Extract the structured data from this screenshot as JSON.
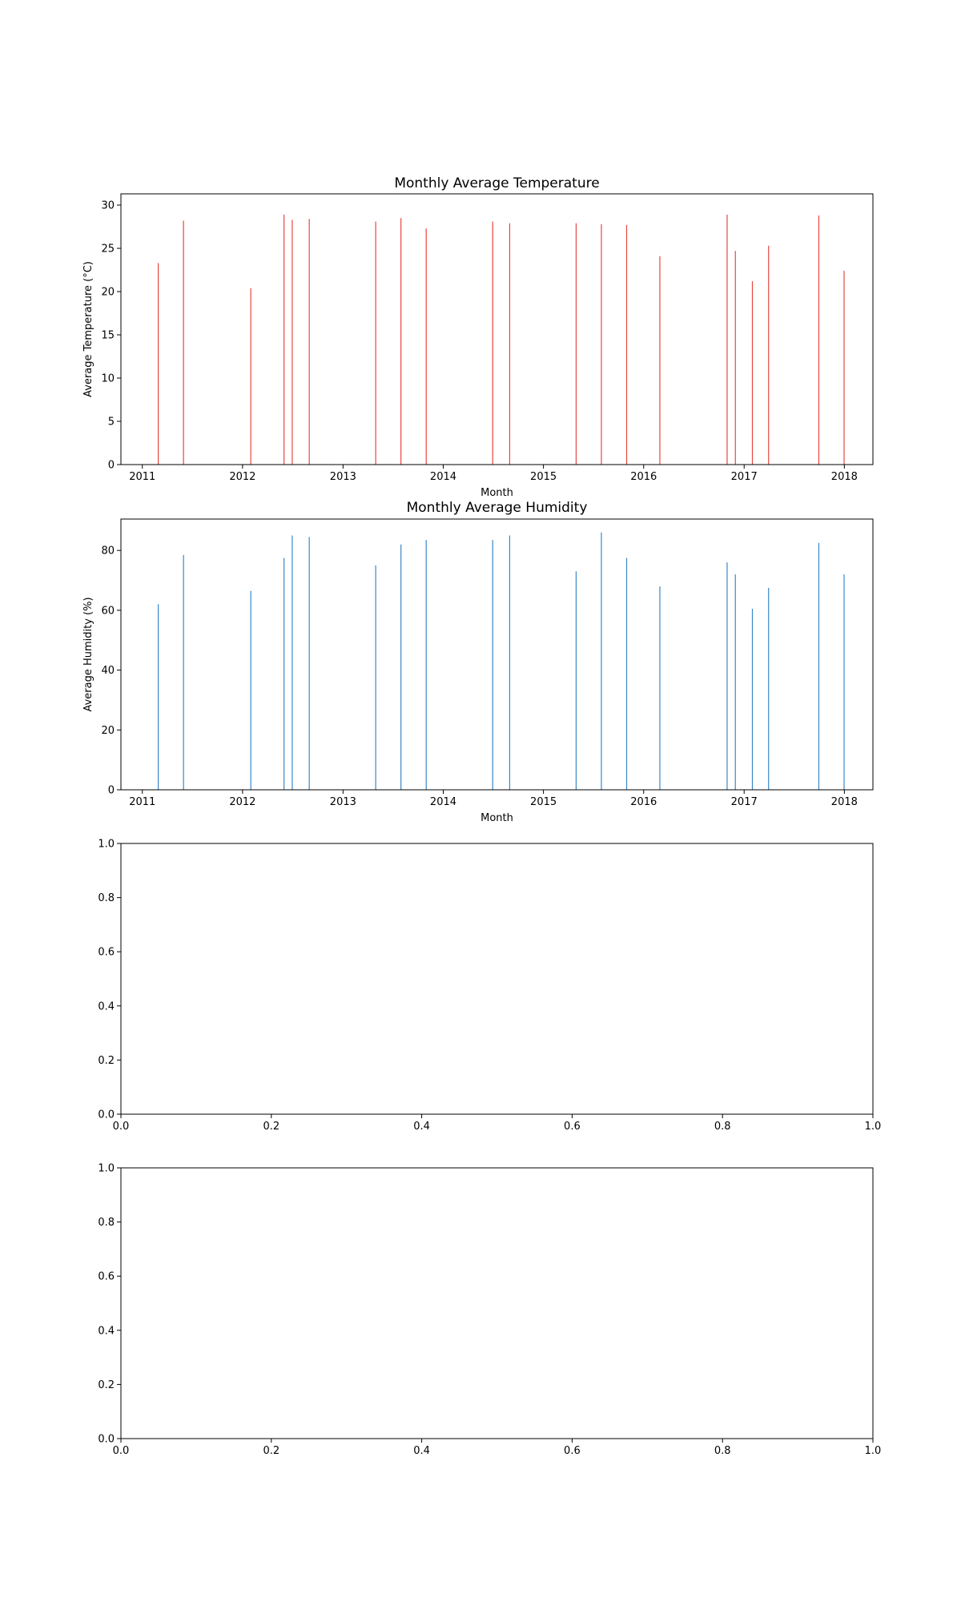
{
  "chart_data": [
    {
      "type": "bar",
      "title": "Monthly Average Temperature",
      "xlabel": "Month",
      "ylabel": "Average Temperature (°C)",
      "x_axis": "date",
      "xlim": [
        "2010-10-15",
        "2018-04-15"
      ],
      "ylim": [
        0,
        31.3
      ],
      "xticks": [
        2011,
        2012,
        2013,
        2014,
        2015,
        2016,
        2017,
        2018
      ],
      "yticks": [
        0,
        5,
        10,
        15,
        20,
        25,
        30
      ],
      "grid": false,
      "color": "#e8473f",
      "x": [
        "2011-02-28",
        "2011-05-31",
        "2012-01-31",
        "2012-05-31",
        "2012-06-30",
        "2012-08-31",
        "2013-04-30",
        "2013-07-31",
        "2013-10-31",
        "2014-06-30",
        "2014-08-31",
        "2015-04-30",
        "2015-07-31",
        "2015-10-31",
        "2016-02-29",
        "2016-10-31",
        "2016-11-30",
        "2017-01-31",
        "2017-03-31",
        "2017-09-30",
        "2017-12-31"
      ],
      "values": [
        23.3,
        28.2,
        20.4,
        28.9,
        28.3,
        28.4,
        28.1,
        28.5,
        27.3,
        28.1,
        27.9,
        27.9,
        27.8,
        27.7,
        24.1,
        28.9,
        24.7,
        21.2,
        25.3,
        28.8,
        22.4
      ]
    },
    {
      "type": "bar",
      "title": "Monthly Average Humidity",
      "xlabel": "Month",
      "ylabel": "Average Humidity (%)",
      "x_axis": "date",
      "xlim": [
        "2010-10-15",
        "2018-04-15"
      ],
      "ylim": [
        0,
        90.5
      ],
      "xticks": [
        2011,
        2012,
        2013,
        2014,
        2015,
        2016,
        2017,
        2018
      ],
      "yticks": [
        0,
        20,
        40,
        60,
        80
      ],
      "grid": false,
      "color": "#3a87c7",
      "x": [
        "2011-02-28",
        "2011-05-31",
        "2012-01-31",
        "2012-05-31",
        "2012-06-30",
        "2012-08-31",
        "2013-04-30",
        "2013-07-31",
        "2013-10-31",
        "2014-06-30",
        "2014-08-31",
        "2015-04-30",
        "2015-07-31",
        "2015-10-31",
        "2016-02-29",
        "2016-10-31",
        "2016-11-30",
        "2017-01-31",
        "2017-03-31",
        "2017-09-30",
        "2017-12-31"
      ],
      "values": [
        62.0,
        78.5,
        66.5,
        77.5,
        85.0,
        84.5,
        75.0,
        82.0,
        83.5,
        83.5,
        85.0,
        73.0,
        86.0,
        77.5,
        68.0,
        76.0,
        72.0,
        60.5,
        67.5,
        82.5,
        72.0
      ]
    },
    {
      "type": "bar",
      "title": "",
      "xlabel": "",
      "ylabel": "",
      "xlim": [
        0,
        1
      ],
      "ylim": [
        0,
        1
      ],
      "xticks": [
        "0.0",
        "0.2",
        "0.4",
        "0.6",
        "0.8",
        "1.0"
      ],
      "yticks": [
        "0.0",
        "0.2",
        "0.4",
        "0.6",
        "0.8",
        "1.0"
      ],
      "values": []
    },
    {
      "type": "bar",
      "title": "",
      "xlabel": "",
      "ylabel": "",
      "xlim": [
        0,
        1
      ],
      "ylim": [
        0,
        1
      ],
      "xticks": [
        "0.0",
        "0.2",
        "0.4",
        "0.6",
        "0.8",
        "1.0"
      ],
      "yticks": [
        "0.0",
        "0.2",
        "0.4",
        "0.6",
        "0.8",
        "1.0"
      ],
      "values": []
    }
  ]
}
